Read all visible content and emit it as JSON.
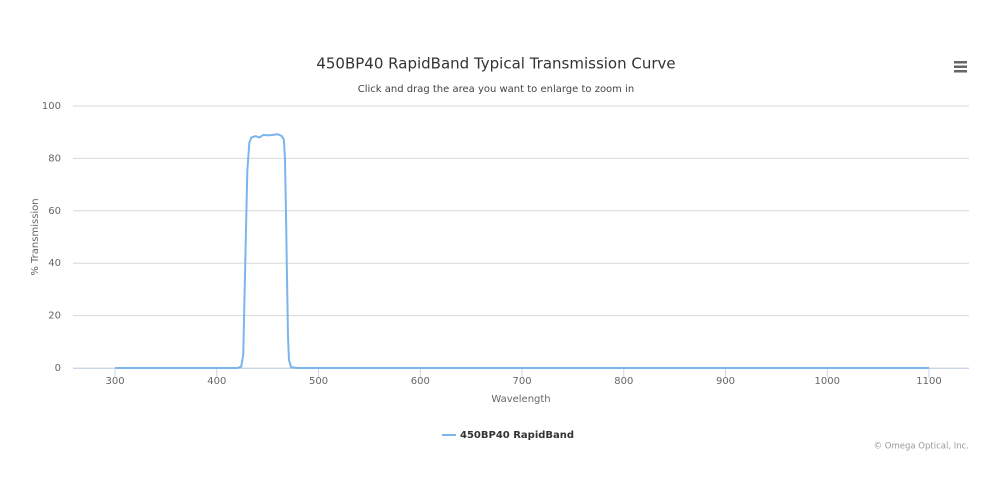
{
  "chart_data": {
    "type": "line",
    "title": "450BP40 RapidBand Typical Transmission Curve",
    "subtitle": "Click and drag the area you want to enlarge to zoom in",
    "x_label": "Wavelength",
    "y_label": "% Transmission",
    "credits": "© Omega Optical, Inc.",
    "x": [
      300,
      420,
      424,
      426,
      428,
      430,
      432,
      434,
      438,
      442,
      446,
      450,
      455,
      460,
      464,
      466,
      467,
      468,
      469,
      470,
      471,
      473,
      480,
      1100
    ],
    "series": [
      {
        "name": "450BP40 RapidBand",
        "color": "#7cb5ec",
        "values": [
          0,
          0,
          0.5,
          5,
          40,
          75,
          86,
          88,
          88.5,
          88,
          89,
          88.8,
          89,
          89.2,
          88.5,
          87,
          80,
          60,
          35,
          12,
          3,
          0.3,
          0,
          0
        ]
      }
    ],
    "xlim": [
      258.7,
      1139.3
    ],
    "xticks": [
      300,
      400,
      500,
      600,
      700,
      800,
      900,
      1000,
      1100
    ],
    "ylim": [
      0,
      100
    ],
    "yticks": [
      0,
      20,
      40,
      60,
      80,
      100
    ],
    "grid": true
  }
}
